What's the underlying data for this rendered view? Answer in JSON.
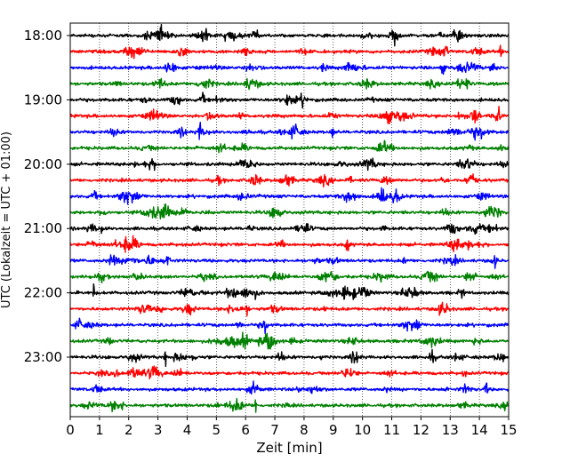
{
  "chart_data": {
    "type": "line",
    "title": "",
    "xlabel": "Zeit  [min]",
    "ylabel": "UTC (Lokalzeit = UTC + 01:00)",
    "xlim": [
      0,
      15
    ],
    "x_ticks": [
      0,
      1,
      2,
      3,
      4,
      5,
      6,
      7,
      8,
      9,
      10,
      11,
      12,
      13,
      14,
      15
    ],
    "x_tick_labels": [
      "0",
      "1",
      "2",
      "3",
      "4",
      "5",
      "6",
      "7",
      "8",
      "9",
      "10",
      "11",
      "12",
      "13",
      "14",
      "15"
    ],
    "y_tick_labels": [
      "18:00",
      "19:00",
      "20:00",
      "21:00",
      "22:00",
      "23:00"
    ],
    "y_tick_rows": [
      0,
      4,
      8,
      12,
      16,
      20
    ],
    "rows_per_hour": 4,
    "minutes_per_row": 15,
    "series": [
      {
        "start": "18:00",
        "color": "#000000"
      },
      {
        "start": "18:15",
        "color": "#ff0000"
      },
      {
        "start": "18:30",
        "color": "#0000ff"
      },
      {
        "start": "18:45",
        "color": "#008000"
      },
      {
        "start": "19:00",
        "color": "#000000"
      },
      {
        "start": "19:15",
        "color": "#ff0000"
      },
      {
        "start": "19:30",
        "color": "#0000ff"
      },
      {
        "start": "19:45",
        "color": "#008000"
      },
      {
        "start": "20:00",
        "color": "#000000"
      },
      {
        "start": "20:15",
        "color": "#ff0000"
      },
      {
        "start": "20:30",
        "color": "#0000ff"
      },
      {
        "start": "20:45",
        "color": "#008000"
      },
      {
        "start": "21:00",
        "color": "#000000"
      },
      {
        "start": "21:15",
        "color": "#ff0000"
      },
      {
        "start": "21:30",
        "color": "#0000ff"
      },
      {
        "start": "21:45",
        "color": "#008000"
      },
      {
        "start": "22:00",
        "color": "#000000"
      },
      {
        "start": "22:15",
        "color": "#ff0000"
      },
      {
        "start": "22:30",
        "color": "#0000ff"
      },
      {
        "start": "22:45",
        "color": "#008000"
      },
      {
        "start": "23:00",
        "color": "#000000"
      },
      {
        "start": "23:15",
        "color": "#ff0000"
      },
      {
        "start": "23:30",
        "color": "#0000ff"
      },
      {
        "start": "23:45",
        "color": "#008000"
      }
    ],
    "grid_x": true,
    "grid_style": "dotted",
    "legend": "none"
  }
}
